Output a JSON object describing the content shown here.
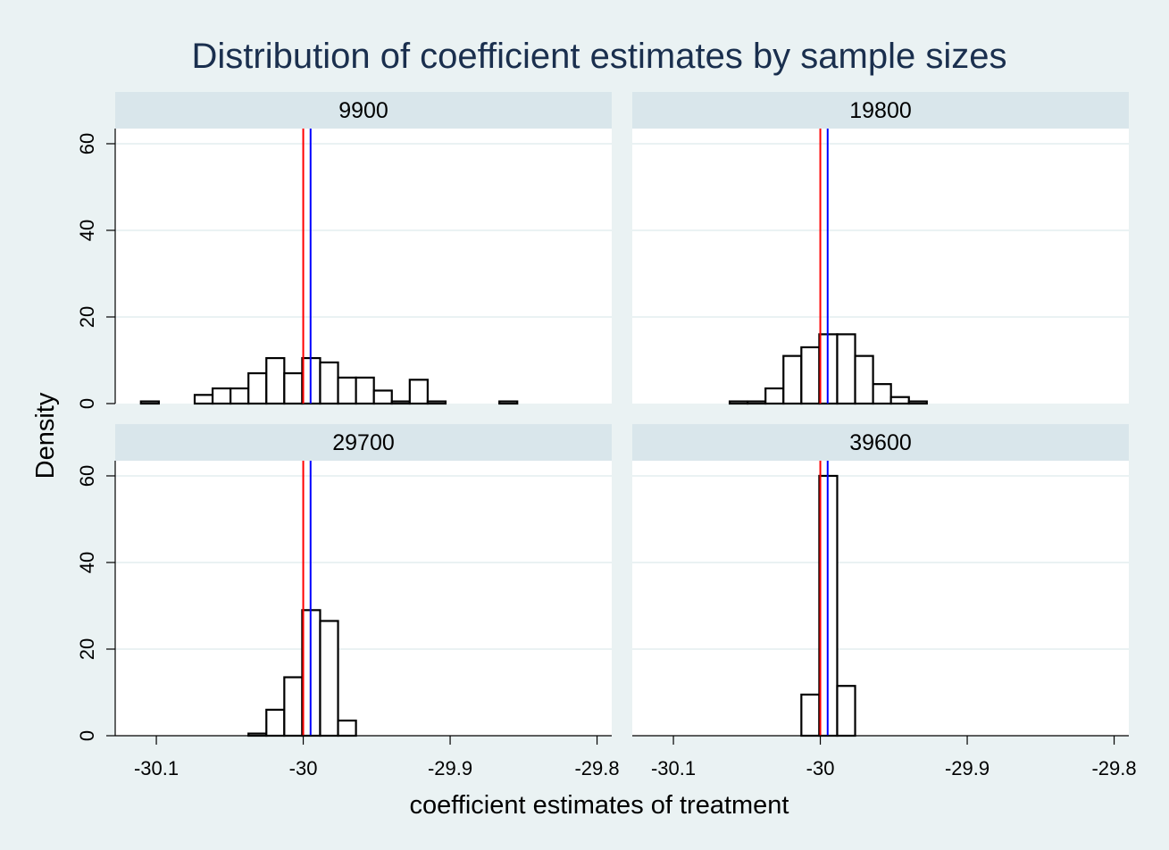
{
  "chart_data": {
    "type": "bar",
    "title": "Distribution of coefficient estimates by sample sizes",
    "xlabel": "coefficient estimates of treatment",
    "ylabel": "Density",
    "xlim": [
      -30.128,
      -29.79
    ],
    "ylim": [
      0,
      63.5
    ],
    "xticks": [
      -30.1,
      -30,
      -29.9,
      -29.8
    ],
    "xtick_labels": [
      "-30.1",
      "-30",
      "-29.9",
      "-29.8"
    ],
    "yticks": [
      0,
      20,
      40,
      60
    ],
    "ytick_labels": [
      "0",
      "20",
      "40",
      "60"
    ],
    "grid": true,
    "bar_fill": "#ffffff",
    "bar_edge": "#000000",
    "reference_lines": [
      {
        "x": -30.0,
        "color": "#ff0000"
      },
      {
        "x": -29.995,
        "color": "#0000ff"
      }
    ],
    "panels": [
      {
        "label": "9900",
        "bin_width": 0.0122,
        "bins": [
          {
            "x0": -30.1105,
            "density": 0.5
          },
          {
            "x0": -30.0739,
            "density": 2.0
          },
          {
            "x0": -30.0617,
            "density": 3.5
          },
          {
            "x0": -30.0495,
            "density": 3.5
          },
          {
            "x0": -30.0373,
            "density": 7.0
          },
          {
            "x0": -30.0251,
            "density": 10.5
          },
          {
            "x0": -30.0129,
            "density": 7.0
          },
          {
            "x0": -30.0007,
            "density": 10.5
          },
          {
            "x0": -29.9885,
            "density": 9.5
          },
          {
            "x0": -29.9763,
            "density": 6.0
          },
          {
            "x0": -29.9641,
            "density": 6.0
          },
          {
            "x0": -29.9519,
            "density": 3.0
          },
          {
            "x0": -29.9397,
            "density": 0.5
          },
          {
            "x0": -29.9275,
            "density": 5.5
          },
          {
            "x0": -29.9153,
            "density": 0.5
          },
          {
            "x0": -29.8665,
            "density": 0.5
          }
        ]
      },
      {
        "label": "19800",
        "bin_width": 0.0122,
        "bins": [
          {
            "x0": -30.0617,
            "density": 0.5
          },
          {
            "x0": -30.0495,
            "density": 0.5
          },
          {
            "x0": -30.0373,
            "density": 3.5
          },
          {
            "x0": -30.0251,
            "density": 11.0
          },
          {
            "x0": -30.0129,
            "density": 13.0
          },
          {
            "x0": -30.0007,
            "density": 16.0
          },
          {
            "x0": -29.9885,
            "density": 16.0
          },
          {
            "x0": -29.9763,
            "density": 11.0
          },
          {
            "x0": -29.9641,
            "density": 4.5
          },
          {
            "x0": -29.9519,
            "density": 1.5
          },
          {
            "x0": -29.9397,
            "density": 0.5
          }
        ]
      },
      {
        "label": "29700",
        "bin_width": 0.0122,
        "bins": [
          {
            "x0": -30.0373,
            "density": 0.5
          },
          {
            "x0": -30.0251,
            "density": 6.0
          },
          {
            "x0": -30.0129,
            "density": 13.5
          },
          {
            "x0": -30.0007,
            "density": 29.0
          },
          {
            "x0": -29.9885,
            "density": 26.5
          },
          {
            "x0": -29.9763,
            "density": 3.5
          }
        ]
      },
      {
        "label": "39600",
        "bin_width": 0.0122,
        "bins": [
          {
            "x0": -30.0129,
            "density": 9.5
          },
          {
            "x0": -30.0007,
            "density": 60.0
          },
          {
            "x0": -29.9885,
            "density": 11.5
          }
        ]
      }
    ]
  }
}
